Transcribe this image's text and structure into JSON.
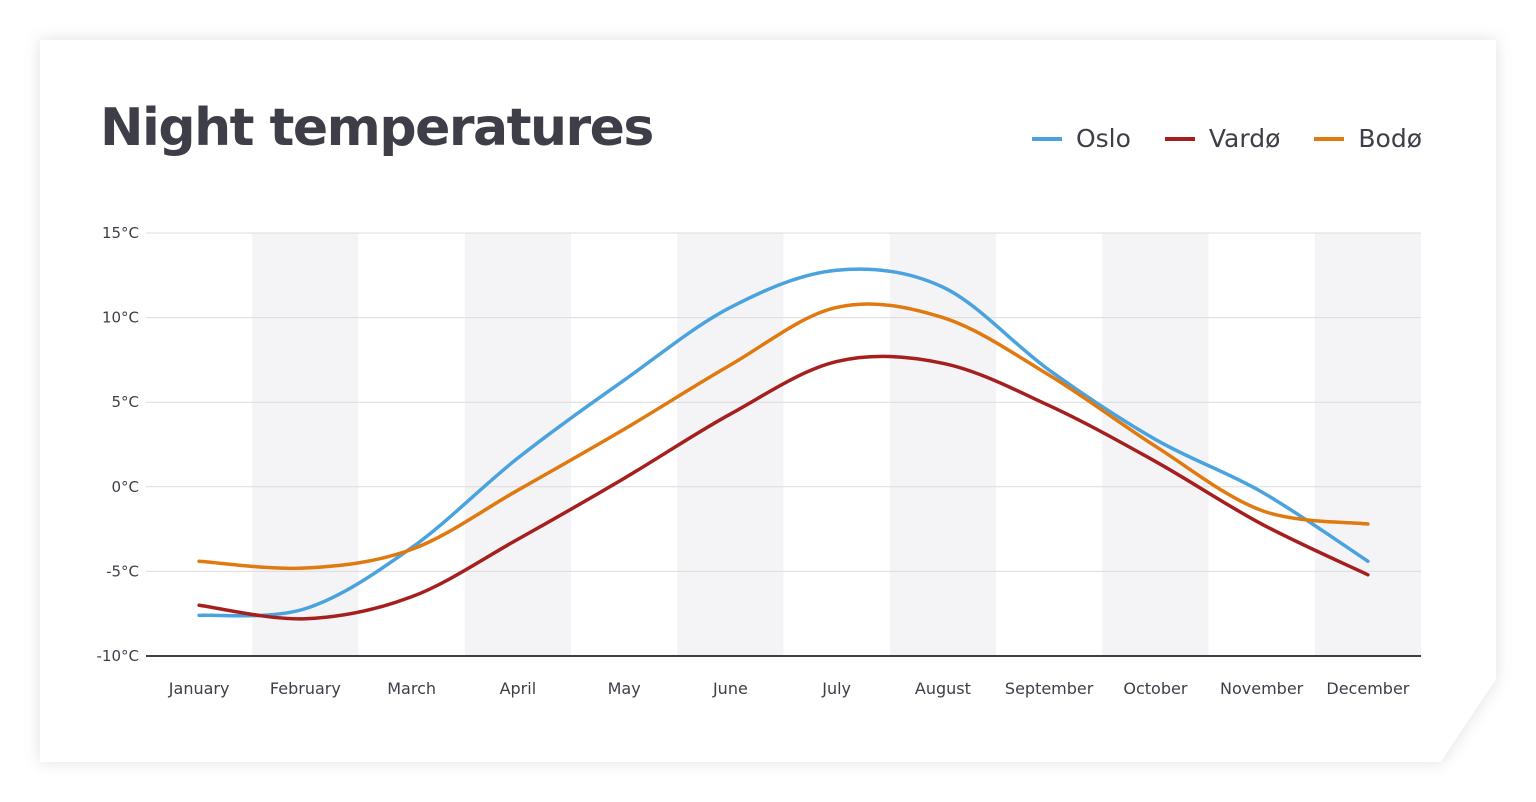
{
  "chart_data": {
    "type": "line",
    "title": "Night temperatures",
    "categories": [
      "January",
      "February",
      "March",
      "April",
      "May",
      "June",
      "July",
      "August",
      "September",
      "October",
      "November",
      "December"
    ],
    "yticks": [
      "15°C",
      "10°C",
      "5°C",
      "0°C",
      "-5°C",
      "-10°C"
    ],
    "ytick_values": [
      15,
      10,
      5,
      0,
      -5,
      -10
    ],
    "ylim": [
      -10,
      15
    ],
    "grid": true,
    "legend": "top-right",
    "series": [
      {
        "name": "Oslo",
        "color": "#4aa3df",
        "values": [
          -7.6,
          -7.2,
          -3.6,
          1.7,
          6.3,
          10.6,
          12.8,
          11.8,
          6.9,
          2.8,
          -0.3,
          -4.4
        ]
      },
      {
        "name": "Vardø",
        "color": "#a61f1f",
        "values": [
          -7.0,
          -7.8,
          -6.5,
          -3.1,
          0.5,
          4.3,
          7.4,
          7.3,
          4.8,
          1.5,
          -2.2,
          -5.2
        ]
      },
      {
        "name": "Bodø",
        "color": "#e07a10",
        "values": [
          -4.4,
          -4.8,
          -3.7,
          -0.2,
          3.4,
          7.2,
          10.6,
          10.0,
          6.6,
          2.4,
          -1.4,
          -2.2
        ]
      }
    ]
  }
}
